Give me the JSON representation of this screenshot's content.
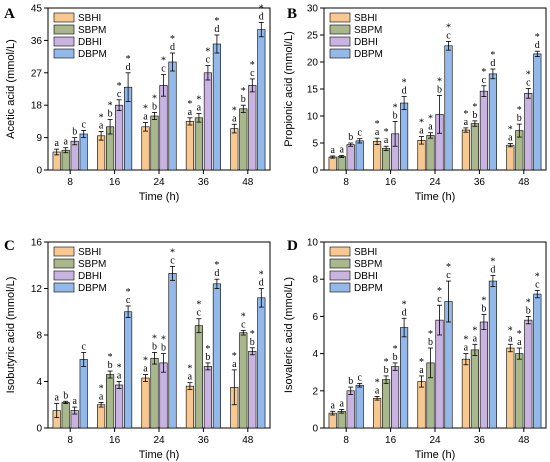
{
  "chart_data": [
    {
      "panel": "A",
      "type": "bar",
      "xlabel": "Time (h)",
      "ylabel": "Acetic acid (mmol/L)",
      "ylim": [
        0,
        45
      ],
      "yticks": [
        0,
        9,
        18,
        27,
        36,
        45
      ],
      "categories": [
        "8",
        "16",
        "24",
        "36",
        "48"
      ],
      "legend": "top-left",
      "series": [
        {
          "name": "SBHI",
          "color": "#f7c88f",
          "values": [
            5.0,
            9.5,
            12.0,
            13.5,
            11.5
          ],
          "errors": [
            0.8,
            1.2,
            1.2,
            1.0,
            1.2
          ],
          "labels": [
            "a",
            "a",
            "a",
            "a",
            "a"
          ],
          "stars": [
            false,
            true,
            true,
            true,
            true
          ]
        },
        {
          "name": "SBPM",
          "color": "#a9b88c",
          "values": [
            5.5,
            12.0,
            15.0,
            14.5,
            17.0
          ],
          "errors": [
            0.7,
            2.0,
            1.0,
            1.2,
            1.0
          ],
          "labels": [
            "a",
            "b",
            "b",
            "a",
            "b"
          ],
          "stars": [
            false,
            true,
            true,
            true,
            true
          ]
        },
        {
          "name": "DBHI",
          "color": "#c9b3e0",
          "values": [
            8.0,
            18.0,
            23.5,
            27.0,
            23.5
          ],
          "errors": [
            1.0,
            1.5,
            3.0,
            2.0,
            1.8
          ],
          "labels": [
            "b",
            "c",
            "c",
            "c",
            "c"
          ],
          "stars": [
            false,
            true,
            true,
            true,
            true
          ]
        },
        {
          "name": "DBPM",
          "color": "#92b9ea",
          "values": [
            10.0,
            23.0,
            30.0,
            35.0,
            39.0
          ],
          "errors": [
            1.0,
            4.0,
            2.5,
            2.5,
            2.0
          ],
          "labels": [
            "c",
            "d",
            "d",
            "d",
            "d"
          ],
          "stars": [
            false,
            true,
            true,
            true,
            true
          ]
        }
      ]
    },
    {
      "panel": "B",
      "type": "bar",
      "xlabel": "Time (h)",
      "ylabel": "Propionic acid (mmol/L)",
      "ylim": [
        0,
        30
      ],
      "yticks": [
        0,
        5,
        10,
        15,
        20,
        25,
        30
      ],
      "categories": [
        "8",
        "16",
        "24",
        "36",
        "48"
      ],
      "legend": "top-left",
      "series": [
        {
          "name": "SBHI",
          "color": "#f7c88f",
          "values": [
            2.4,
            5.3,
            5.5,
            7.4,
            4.6
          ],
          "errors": [
            0.2,
            0.6,
            0.7,
            0.4,
            0.3
          ],
          "labels": [
            "a",
            "a",
            "a",
            "a",
            "a"
          ],
          "stars": [
            false,
            true,
            true,
            true,
            true
          ]
        },
        {
          "name": "SBPM",
          "color": "#a9b88c",
          "values": [
            2.5,
            4.0,
            6.4,
            8.6,
            7.3
          ],
          "errors": [
            0.2,
            0.4,
            0.5,
            0.5,
            1.2
          ],
          "labels": [
            "a",
            "a",
            "a",
            "b",
            "b"
          ],
          "stars": [
            false,
            true,
            true,
            true,
            true
          ]
        },
        {
          "name": "DBHI",
          "color": "#c9b3e0",
          "values": [
            4.7,
            6.7,
            10.3,
            14.6,
            14.2
          ],
          "errors": [
            0.3,
            2.3,
            3.5,
            1.0,
            0.9
          ],
          "labels": [
            "b",
            "b",
            "b",
            "c",
            "c"
          ],
          "stars": [
            false,
            true,
            true,
            true,
            true
          ]
        },
        {
          "name": "DBPM",
          "color": "#92b9ea",
          "values": [
            5.4,
            12.4,
            23.0,
            17.8,
            21.5
          ],
          "errors": [
            0.4,
            1.2,
            0.8,
            0.9,
            0.5
          ],
          "labels": [
            "c",
            "d",
            "c",
            "d",
            "d"
          ],
          "stars": [
            false,
            true,
            true,
            true,
            true
          ]
        }
      ]
    },
    {
      "panel": "C",
      "type": "bar",
      "xlabel": "Time (h)",
      "ylabel": "Isobutyric acid (mmol/L)",
      "ylim": [
        0,
        16
      ],
      "yticks": [
        0,
        4,
        8,
        12,
        16
      ],
      "categories": [
        "8",
        "16",
        "24",
        "36",
        "48"
      ],
      "legend": "top-left",
      "series": [
        {
          "name": "SBHI",
          "color": "#f7c88f",
          "values": [
            1.5,
            2.0,
            4.3,
            3.6,
            3.5
          ],
          "errors": [
            0.6,
            0.2,
            0.3,
            0.3,
            1.5
          ],
          "labels": [
            "a",
            "a",
            "a",
            "a",
            "a"
          ],
          "stars": [
            false,
            true,
            true,
            true,
            true
          ]
        },
        {
          "name": "SBPM",
          "color": "#a9b88c",
          "values": [
            2.2,
            4.6,
            6.0,
            8.8,
            8.2
          ],
          "errors": [
            0.1,
            0.3,
            0.5,
            0.6,
            0.2
          ],
          "labels": [
            "b",
            "b",
            "b",
            "c",
            "c"
          ],
          "stars": [
            false,
            true,
            true,
            true,
            true
          ]
        },
        {
          "name": "DBHI",
          "color": "#c9b3e0",
          "values": [
            1.5,
            3.7,
            5.6,
            5.3,
            6.6
          ],
          "errors": [
            0.3,
            0.3,
            0.8,
            0.3,
            0.3
          ],
          "labels": [
            "a",
            "a",
            "b",
            "b",
            "b"
          ],
          "stars": [
            false,
            true,
            true,
            true,
            true
          ]
        },
        {
          "name": "DBPM",
          "color": "#92b9ea",
          "values": [
            5.9,
            10.0,
            13.3,
            12.4,
            11.2
          ],
          "errors": [
            0.6,
            0.5,
            0.6,
            0.4,
            0.8
          ],
          "labels": [
            "c",
            "c",
            "c",
            "d",
            "d"
          ],
          "stars": [
            false,
            true,
            true,
            true,
            true
          ]
        }
      ]
    },
    {
      "panel": "D",
      "type": "bar",
      "xlabel": "Time (h)",
      "ylabel": "Isovaleric acid (mmol/L)",
      "ylim": [
        0,
        10
      ],
      "yticks": [
        0,
        2,
        4,
        6,
        8,
        10
      ],
      "categories": [
        "8",
        "16",
        "24",
        "36",
        "48"
      ],
      "legend": "top-left",
      "series": [
        {
          "name": "SBHI",
          "color": "#f7c88f",
          "values": [
            0.8,
            1.6,
            2.5,
            3.7,
            4.3
          ],
          "errors": [
            0.1,
            0.1,
            0.3,
            0.3,
            0.2
          ],
          "labels": [
            "a",
            "a",
            "a",
            "a",
            "a"
          ],
          "stars": [
            false,
            true,
            true,
            true,
            true
          ]
        },
        {
          "name": "SBPM",
          "color": "#a9b88c",
          "values": [
            0.9,
            2.6,
            3.5,
            4.2,
            4.0
          ],
          "errors": [
            0.1,
            0.2,
            0.8,
            0.3,
            0.3
          ],
          "labels": [
            "a",
            "b",
            "b",
            "a",
            "a"
          ],
          "stars": [
            false,
            true,
            true,
            true,
            true
          ]
        },
        {
          "name": "DBHI",
          "color": "#c9b3e0",
          "values": [
            2.0,
            3.3,
            5.8,
            5.7,
            5.8
          ],
          "errors": [
            0.2,
            0.2,
            0.8,
            0.4,
            0.2
          ],
          "labels": [
            "b",
            "b",
            "c",
            "b",
            "b"
          ],
          "stars": [
            false,
            true,
            true,
            true,
            true
          ]
        },
        {
          "name": "DBPM",
          "color": "#92b9ea",
          "values": [
            2.3,
            5.4,
            6.8,
            7.9,
            7.2
          ],
          "errors": [
            0.1,
            0.5,
            1.1,
            0.3,
            0.2
          ],
          "labels": [
            "c",
            "d",
            "c",
            "d",
            "c"
          ],
          "stars": [
            false,
            true,
            true,
            true,
            true
          ]
        }
      ]
    }
  ]
}
